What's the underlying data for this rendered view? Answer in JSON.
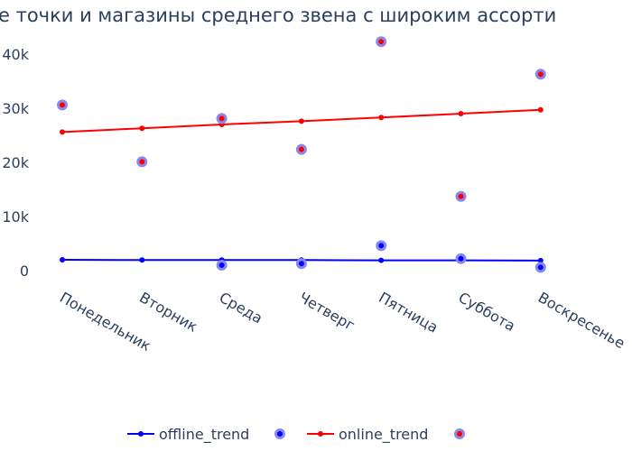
{
  "chart_data": {
    "type": "line",
    "title": "е точки и магазины среднего звена с широким ассорти",
    "categories": [
      "Понедельник",
      "Вторник",
      "Среда",
      "Четверг",
      "Пятница",
      "Суббота",
      "Воскресенье"
    ],
    "ylim": [
      -3000,
      45000
    ],
    "yticks": [
      0,
      10000,
      20000,
      30000,
      40000
    ],
    "ytick_labels": [
      "0",
      "10k",
      "20k",
      "30k",
      "40k"
    ],
    "xlabel": "",
    "ylabel": "",
    "series": [
      {
        "name": "offline_trend",
        "kind": "trend",
        "color": "#0000ff",
        "values": [
          2000,
          1950,
          1950,
          1950,
          1900,
          1900,
          1850
        ]
      },
      {
        "name": "offline",
        "kind": "markers",
        "color": "#0000ff",
        "values": [
          null,
          null,
          1000,
          1300,
          4600,
          2200,
          600
        ]
      },
      {
        "name": "online_trend",
        "kind": "trend",
        "color": "#ff0000",
        "values": [
          25600,
          26300,
          27000,
          27600,
          28300,
          29000,
          29700
        ]
      },
      {
        "name": "online",
        "kind": "markers",
        "color": "#ff0000",
        "values": [
          30600,
          20100,
          28100,
          22400,
          42300,
          13700,
          36300
        ]
      }
    ],
    "legend": {
      "position": "bottom",
      "entries": [
        {
          "label": "offline_trend",
          "kind": "line",
          "color": "#0000ff"
        },
        {
          "label": "",
          "kind": "marker",
          "color": "#0000ff"
        },
        {
          "label": "online_trend",
          "kind": "line",
          "color": "#ff0000"
        },
        {
          "label": "",
          "kind": "marker",
          "color": "#ff0000"
        }
      ]
    },
    "marker_ring_color": "#8888ee",
    "grid": false
  }
}
